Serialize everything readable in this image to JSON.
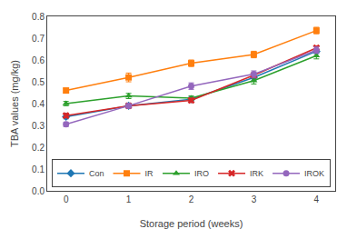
{
  "chart_data": {
    "type": "line",
    "x": [
      0,
      1,
      2,
      3,
      4
    ],
    "series": [
      {
        "name": "Con",
        "values": [
          0.34,
          0.39,
          0.42,
          0.52,
          0.64
        ],
        "yerr": [
          0.01,
          0.01,
          0.01,
          0.015,
          0.01
        ],
        "marker": "diamond"
      },
      {
        "name": "IR",
        "values": [
          0.46,
          0.52,
          0.585,
          0.625,
          0.735
        ],
        "yerr": [
          0.01,
          0.02,
          0.015,
          0.015,
          0.015
        ],
        "marker": "square"
      },
      {
        "name": "IRO",
        "values": [
          0.4,
          0.435,
          0.425,
          0.505,
          0.62
        ],
        "yerr": [
          0.01,
          0.012,
          0.01,
          0.015,
          0.015
        ],
        "marker": "triangle-up"
      },
      {
        "name": "IRK",
        "values": [
          0.345,
          0.39,
          0.415,
          0.53,
          0.655
        ],
        "yerr": [
          0.01,
          0.01,
          0.01,
          0.01,
          0.01
        ],
        "marker": "x"
      },
      {
        "name": "IROK",
        "values": [
          0.305,
          0.39,
          0.48,
          0.535,
          0.645
        ],
        "yerr": [
          0.01,
          0.01,
          0.015,
          0.015,
          0.015
        ],
        "marker": "circle"
      }
    ],
    "x_label": "Storage period (weeks)",
    "y_label": "TBA values (mg/kg)",
    "xlim": [
      -0.3,
      4.3
    ],
    "ylim": [
      0.0,
      0.8
    ],
    "xticks": [
      0,
      1,
      2,
      3,
      4
    ],
    "yticks": [
      {
        "value": 0.0,
        "label": "0.0"
      },
      0.1,
      0.2,
      0.3,
      0.4,
      0.5,
      0.6,
      0.7,
      0.8
    ],
    "grid": false,
    "legend": "lower center"
  }
}
